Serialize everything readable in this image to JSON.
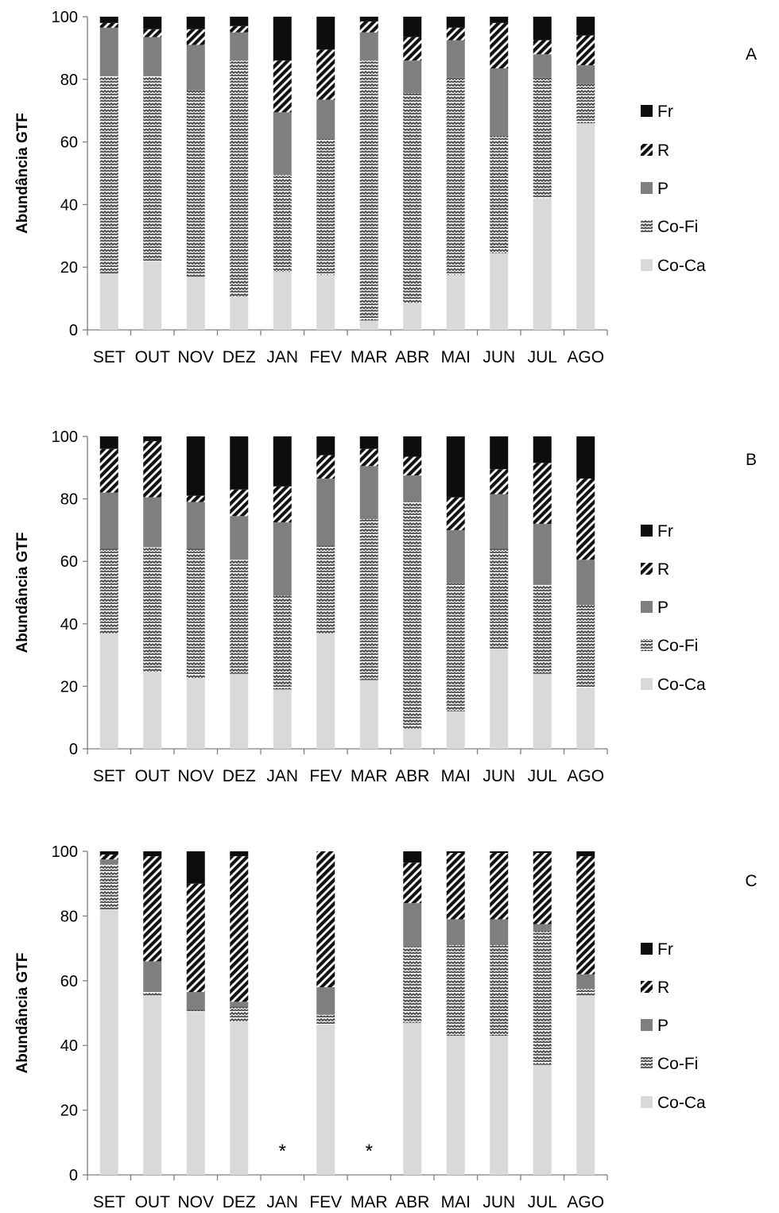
{
  "colors": {
    "Co-Ca": "#d9d9d9",
    "Co-Fi": "zigzag-pattern",
    "P": "#7f7f7f",
    "R": "diagonal-hatch-pattern",
    "Fr": "#0d0d0d",
    "axis": "#7f7f7f"
  },
  "chart_data": [
    {
      "type": "bar",
      "stacked": true,
      "panel_label": "A",
      "ylabel": "Abundância GTF",
      "ylim": [
        0,
        100
      ],
      "yticks": [
        "0",
        "20",
        "40",
        "60",
        "80",
        "100"
      ],
      "categories": [
        "SET",
        "OUT",
        "NOV",
        "DEZ",
        "JAN",
        "FEV",
        "MAR",
        "ABR",
        "MAI",
        "JUN",
        "JUL",
        "AGO"
      ],
      "legend": [
        "Fr",
        "R",
        "P",
        "Co-Fi",
        "Co-Ca"
      ],
      "series": [
        {
          "name": "Co-Ca",
          "values": [
            18,
            22,
            17,
            10.5,
            18.5,
            17.5,
            3,
            8.5,
            17.5,
            24.5,
            42,
            66
          ]
        },
        {
          "name": "Co-Fi",
          "values": [
            63,
            59,
            59.5,
            75.5,
            31,
            43.5,
            83,
            67,
            63,
            37.5,
            38.5,
            12.5
          ]
        },
        {
          "name": "P",
          "values": [
            15.5,
            12.5,
            14.5,
            9,
            20,
            12.5,
            9,
            10.5,
            12,
            21.5,
            7.5,
            6
          ]
        },
        {
          "name": "R",
          "values": [
            1.5,
            2.5,
            5,
            2,
            16.5,
            16,
            3.5,
            7.5,
            4,
            14.5,
            4.5,
            9.5
          ]
        },
        {
          "name": "Fr",
          "values": [
            2,
            4,
            4,
            3,
            14,
            10.5,
            1.5,
            6.5,
            3.5,
            2,
            7.5,
            6
          ]
        }
      ],
      "annotations": []
    },
    {
      "type": "bar",
      "stacked": true,
      "panel_label": "B",
      "ylabel": "Abundância GTF",
      "ylim": [
        0,
        100
      ],
      "yticks": [
        "0",
        "20",
        "40",
        "60",
        "80",
        "100"
      ],
      "categories": [
        "SET",
        "OUT",
        "NOV",
        "DEZ",
        "JAN",
        "FEV",
        "MAR",
        "ABR",
        "MAI",
        "JUN",
        "JUL",
        "AGO"
      ],
      "legend": [
        "Fr",
        "R",
        "P",
        "Co-Fi",
        "Co-Ca"
      ],
      "series": [
        {
          "name": "Co-Ca",
          "values": [
            37,
            24.5,
            22.5,
            24,
            19,
            37,
            22,
            6.5,
            12,
            32,
            24,
            19.5
          ]
        },
        {
          "name": "Co-Fi",
          "values": [
            27,
            40,
            41.5,
            36.5,
            30,
            28,
            51.5,
            72.5,
            41,
            32,
            28.5,
            26.5
          ]
        },
        {
          "name": "P",
          "values": [
            18,
            16,
            15,
            14,
            23.5,
            21.5,
            17,
            8.5,
            17,
            17.5,
            19.5,
            14.5
          ]
        },
        {
          "name": "R",
          "values": [
            14,
            18,
            2,
            8.5,
            11.5,
            7.5,
            5.5,
            6,
            10.5,
            8,
            19.5,
            26
          ]
        },
        {
          "name": "Fr",
          "values": [
            4,
            1.5,
            19,
            17,
            16,
            6,
            4,
            6.5,
            19.5,
            10.5,
            8.5,
            13.5
          ]
        }
      ],
      "annotations": []
    },
    {
      "type": "bar",
      "stacked": true,
      "panel_label": "C",
      "ylabel": "Abundância GTF",
      "ylim": [
        0,
        100
      ],
      "yticks": [
        "0",
        "20",
        "40",
        "60",
        "80",
        "100"
      ],
      "categories": [
        "SET",
        "OUT",
        "NOV",
        "DEZ",
        "JAN",
        "FEV",
        "MAR",
        "ABR",
        "MAI",
        "JUN",
        "JUL",
        "AGO"
      ],
      "legend": [
        "Fr",
        "R",
        "P",
        "Co-Fi",
        "Co-Ca"
      ],
      "series": [
        {
          "name": "Co-Ca",
          "values": [
            82,
            55.5,
            50.5,
            47.5,
            0,
            46.5,
            0,
            47,
            43,
            43,
            34,
            55.5
          ]
        },
        {
          "name": "Co-Fi",
          "values": [
            14,
            1,
            0.5,
            4.5,
            0,
            3,
            0,
            23.5,
            28,
            28,
            41.5,
            2
          ]
        },
        {
          "name": "P",
          "values": [
            1.5,
            9.5,
            5.5,
            1.5,
            0,
            8.5,
            0,
            13.5,
            8,
            8,
            2,
            4.5
          ]
        },
        {
          "name": "R",
          "values": [
            1.5,
            32.5,
            33.5,
            45,
            0,
            42,
            0,
            12.5,
            20.5,
            20.5,
            22,
            36.5
          ]
        },
        {
          "name": "Fr",
          "values": [
            1,
            1.5,
            10,
            1.5,
            0,
            0,
            0,
            3.5,
            0.5,
            0.5,
            0.5,
            1.5
          ]
        }
      ],
      "annotations": [
        {
          "category": "JAN",
          "text": "*"
        },
        {
          "category": "MAR",
          "text": "*"
        }
      ]
    }
  ]
}
